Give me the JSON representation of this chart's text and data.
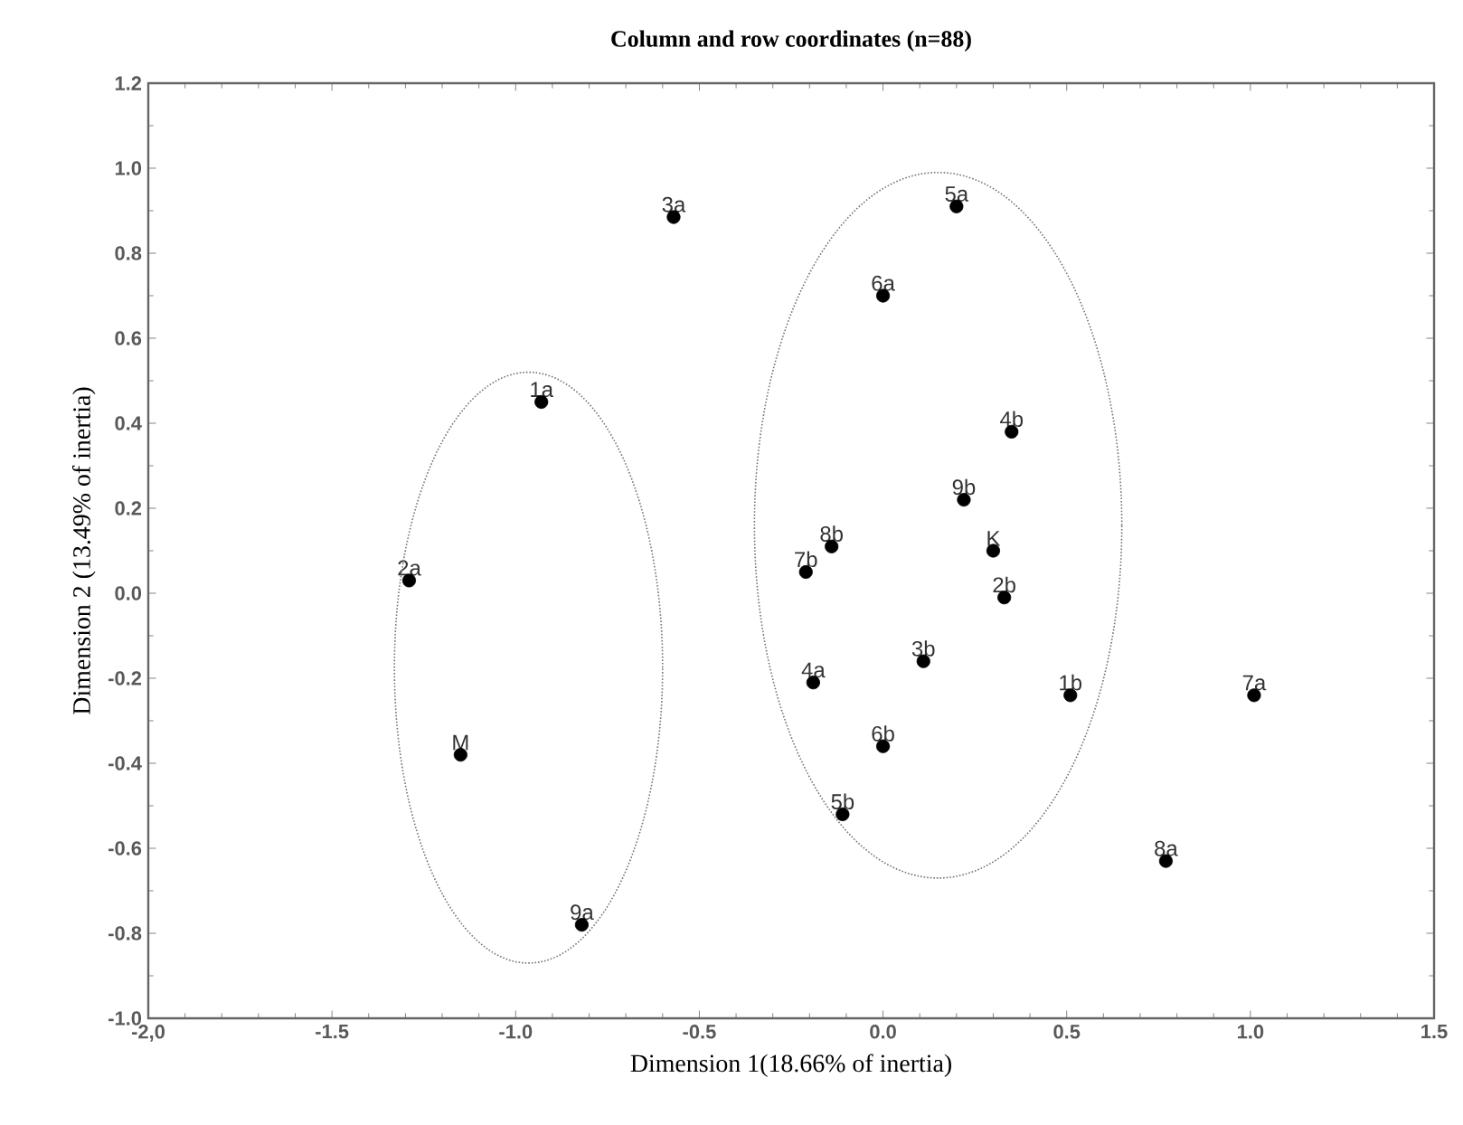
{
  "chart_data": {
    "type": "scatter",
    "title": "Column and row coordinates (n=88)",
    "xlabel": "Dimension 1(18.66% of inertia)",
    "ylabel": "Dimension 2 (13.49% of inertia)",
    "x": [
      -0.93,
      -1.29,
      -0.57,
      -0.19,
      0.2,
      0.0,
      1.01,
      0.77,
      -0.82,
      0.51,
      0.33,
      0.11,
      0.35,
      -0.11,
      0.0,
      -0.21,
      -0.14,
      0.22,
      0.3,
      -1.15
    ],
    "values": [
      0.45,
      0.03,
      0.885,
      -0.21,
      0.91,
      0.7,
      -0.24,
      -0.63,
      -0.78,
      -0.24,
      -0.01,
      -0.16,
      0.38,
      -0.52,
      -0.36,
      0.05,
      0.11,
      0.22,
      0.1,
      -0.38
    ],
    "color": "#000000",
    "marker": "circle",
    "grid": false,
    "xlim": [
      -2.0,
      1.5
    ],
    "ylim": [
      -1.0,
      1.2
    ],
    "xticks": [
      {
        "value": -2.0,
        "label": "-2,0"
      },
      -1.5,
      {
        "value": -1.0,
        "label": "-1.0"
      },
      -0.5,
      {
        "value": 0.0,
        "label": "0.0"
      },
      0.5,
      {
        "value": 1.0,
        "label": "1.0"
      },
      1.5
    ],
    "yticks": [
      {
        "value": -1.0,
        "label": "-1.0"
      },
      -0.8,
      -0.6,
      -0.4,
      -0.2,
      {
        "value": 0.0,
        "label": "0.0"
      },
      0.2,
      0.4,
      0.6,
      0.8,
      {
        "value": 1.0,
        "label": "1.0"
      },
      1.2
    ],
    "annotations": [
      {
        "text": "1a",
        "x": -0.93,
        "y": 0.45
      },
      {
        "text": "2a",
        "x": -1.29,
        "y": 0.03
      },
      {
        "text": "3a",
        "x": -0.57,
        "y": 0.885
      },
      {
        "text": "4a",
        "x": -0.19,
        "y": -0.21
      },
      {
        "text": "5a",
        "x": 0.2,
        "y": 0.91
      },
      {
        "text": "6a",
        "x": 0.0,
        "y": 0.7
      },
      {
        "text": "7a",
        "x": 1.01,
        "y": -0.24
      },
      {
        "text": "8a",
        "x": 0.77,
        "y": -0.63
      },
      {
        "text": "9a",
        "x": -0.82,
        "y": -0.78
      },
      {
        "text": "1b",
        "x": 0.51,
        "y": -0.24
      },
      {
        "text": "2b",
        "x": 0.33,
        "y": -0.01
      },
      {
        "text": "3b",
        "x": 0.11,
        "y": -0.16
      },
      {
        "text": "4b",
        "x": 0.35,
        "y": 0.38
      },
      {
        "text": "5b",
        "x": -0.11,
        "y": -0.52
      },
      {
        "text": "6b",
        "x": 0.0,
        "y": -0.36
      },
      {
        "text": "7b",
        "x": -0.21,
        "y": 0.05
      },
      {
        "text": "8b",
        "x": -0.14,
        "y": 0.11
      },
      {
        "text": "9b",
        "x": 0.22,
        "y": 0.22
      },
      {
        "text": "K",
        "x": 0.3,
        "y": 0.1
      },
      {
        "text": "M",
        "x": -1.15,
        "y": -0.38
      }
    ]
  }
}
